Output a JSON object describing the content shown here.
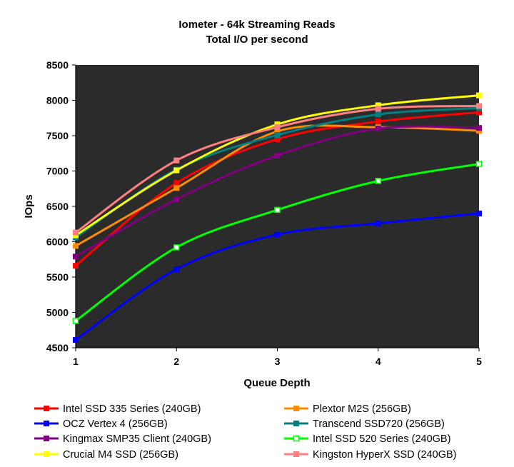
{
  "chart_data": {
    "type": "line",
    "title": "Iometer - 64k Streaming Reads",
    "subtitle": "Total I/O per second",
    "xlabel": "Queue Depth",
    "ylabel": "IOps",
    "x": [
      1,
      2,
      3,
      4,
      5
    ],
    "xlim": [
      1,
      5
    ],
    "ylim": [
      4500,
      8500
    ],
    "yticks": [
      4500,
      5000,
      5500,
      6000,
      6500,
      7000,
      7500,
      8000,
      8500
    ],
    "xticks": [
      1,
      2,
      3,
      4,
      5
    ],
    "grid": false,
    "plot_background": "#2b2b2b",
    "legend_position": "bottom",
    "series": [
      {
        "name": "Intel SSD 335 Series (240GB)",
        "color": "#ff0000",
        "marker": "square",
        "values": [
          5660,
          6830,
          7450,
          7700,
          7830
        ]
      },
      {
        "name": "Plextor M2S (256GB)",
        "color": "#ff8c00",
        "marker": "square",
        "values": [
          5940,
          6760,
          7560,
          7620,
          7570
        ]
      },
      {
        "name": "OCZ Vertex 4 (256GB)",
        "color": "#0000ff",
        "marker": "square",
        "values": [
          4610,
          5610,
          6100,
          6260,
          6400
        ]
      },
      {
        "name": "Transcend SSD720 (256GB)",
        "color": "#008080",
        "marker": "square",
        "values": [
          6060,
          7020,
          7510,
          7800,
          7890
        ]
      },
      {
        "name": "Kingmax SMP35 Client (240GB)",
        "color": "#800080",
        "marker": "square",
        "values": [
          5790,
          6600,
          7220,
          7600,
          7610
        ]
      },
      {
        "name": "Intel SSD 520 Series (240GB)",
        "color": "#00ff00",
        "marker": "hollow-square",
        "values": [
          4880,
          5920,
          6450,
          6860,
          7100
        ]
      },
      {
        "name": "Crucial M4 SSD (256GB)",
        "color": "#ffff00",
        "marker": "square",
        "values": [
          6090,
          7010,
          7660,
          7930,
          8070
        ]
      },
      {
        "name": "Kingston HyperX SSD (240GB)",
        "color": "#ff8080",
        "marker": "square",
        "values": [
          6130,
          7150,
          7620,
          7880,
          7920
        ]
      }
    ]
  }
}
